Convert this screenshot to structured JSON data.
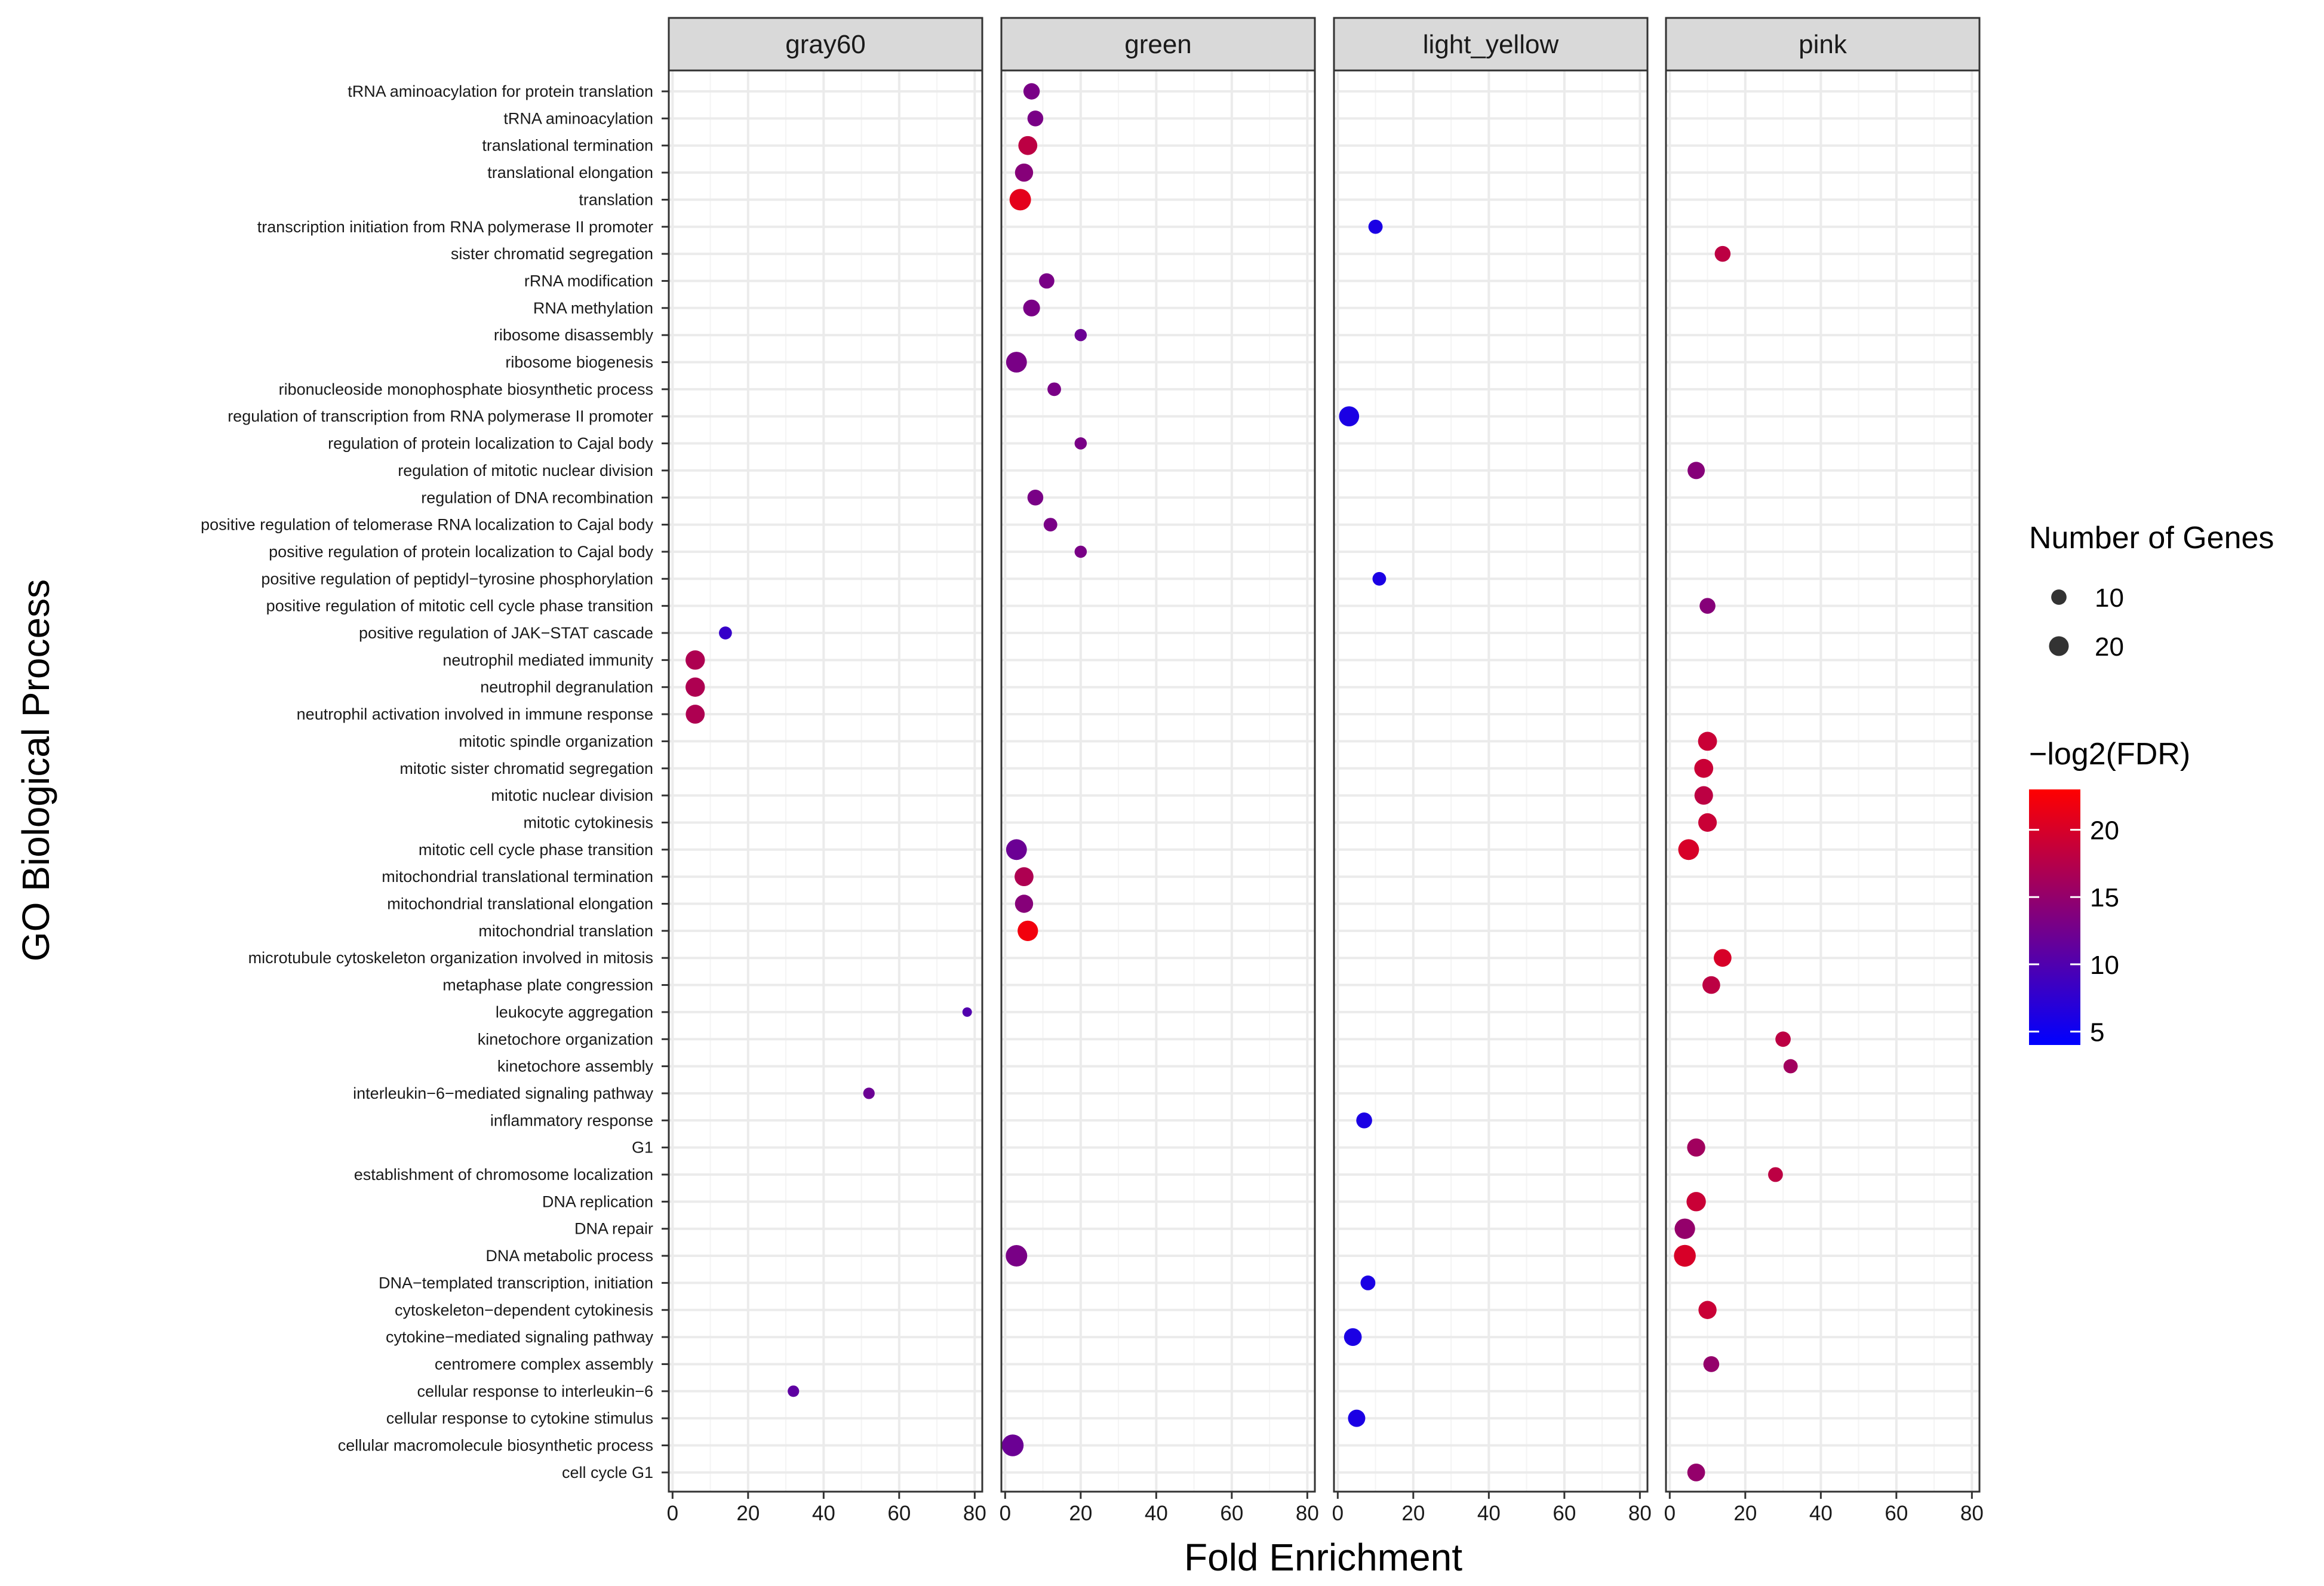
{
  "chart_data": {
    "type": "scatter",
    "facet": "column",
    "x_label": "Fold Enrichment",
    "y_label": "GO Biological Process",
    "x_ticks": [
      0,
      20,
      40,
      60,
      80
    ],
    "x_range": [
      -1,
      82
    ],
    "panels": [
      "gray60",
      "green",
      "light_yellow",
      "pink"
    ],
    "terms": [
      "tRNA aminoacylation for protein translation",
      "tRNA aminoacylation",
      "translational termination",
      "translational elongation",
      "translation",
      "transcription initiation from RNA polymerase II promoter",
      "sister chromatid segregation",
      "rRNA modification",
      "RNA methylation",
      "ribosome disassembly",
      "ribosome biogenesis",
      "ribonucleoside monophosphate biosynthetic process",
      "regulation of transcription from RNA polymerase II promoter",
      "regulation of protein localization to Cajal body",
      "regulation of mitotic nuclear division",
      "regulation of DNA recombination",
      "positive regulation of telomerase RNA localization to Cajal body",
      "positive regulation of protein localization to Cajal body",
      "positive regulation of peptidyl−tyrosine phosphorylation",
      "positive regulation of mitotic cell cycle phase transition",
      "positive regulation of JAK−STAT cascade",
      "neutrophil mediated immunity",
      "neutrophil degranulation",
      "neutrophil activation involved in immune response",
      "mitotic spindle organization",
      "mitotic sister chromatid segregation",
      "mitotic nuclear division",
      "mitotic cytokinesis",
      "mitotic cell cycle phase transition",
      "mitochondrial translational termination",
      "mitochondrial translational elongation",
      "mitochondrial translation",
      "microtubule cytoskeleton organization involved in mitosis",
      "metaphase plate congression",
      "leukocyte aggregation",
      "kinetochore organization",
      "kinetochore assembly",
      "interleukin−6−mediated signaling pathway",
      "inflammatory response",
      "G1",
      "establishment of chromosome localization",
      "DNA replication",
      "DNA repair",
      "DNA metabolic process",
      "DNA−templated transcription, initiation",
      "cytoskeleton−dependent cytokinesis",
      "cytokine−mediated signaling pathway",
      "centromere complex assembly",
      "cellular response to interleukin−6",
      "cellular response to cytokine stimulus",
      "cellular macromolecule biosynthetic process",
      "cell cycle G1"
    ],
    "points": [
      {
        "panel": "gray60",
        "term": 20,
        "x": 14,
        "genes": 6,
        "fdr": 8
      },
      {
        "panel": "gray60",
        "term": 21,
        "x": 6,
        "genes": 19,
        "fdr": 17
      },
      {
        "panel": "gray60",
        "term": 22,
        "x": 6,
        "genes": 19,
        "fdr": 17
      },
      {
        "panel": "gray60",
        "term": 23,
        "x": 6,
        "genes": 18,
        "fdr": 17
      },
      {
        "panel": "gray60",
        "term": 34,
        "x": 78,
        "genes": 2,
        "fdr": 10
      },
      {
        "panel": "gray60",
        "term": 37,
        "x": 52,
        "genes": 4,
        "fdr": 12
      },
      {
        "panel": "gray60",
        "term": 48,
        "x": 32,
        "genes": 4,
        "fdr": 11
      },
      {
        "panel": "green",
        "term": 0,
        "x": 7,
        "genes": 12,
        "fdr": 13
      },
      {
        "panel": "green",
        "term": 1,
        "x": 8,
        "genes": 11,
        "fdr": 13
      },
      {
        "panel": "green",
        "term": 2,
        "x": 6,
        "genes": 18,
        "fdr": 18
      },
      {
        "panel": "green",
        "term": 3,
        "x": 5,
        "genes": 16,
        "fdr": 14
      },
      {
        "panel": "green",
        "term": 4,
        "x": 4,
        "genes": 25,
        "fdr": 21
      },
      {
        "panel": "green",
        "term": 7,
        "x": 11,
        "genes": 10,
        "fdr": 13
      },
      {
        "panel": "green",
        "term": 8,
        "x": 7,
        "genes": 13,
        "fdr": 13
      },
      {
        "panel": "green",
        "term": 9,
        "x": 20,
        "genes": 5,
        "fdr": 12
      },
      {
        "panel": "green",
        "term": 10,
        "x": 3,
        "genes": 23,
        "fdr": 13
      },
      {
        "panel": "green",
        "term": 11,
        "x": 13,
        "genes": 7,
        "fdr": 13
      },
      {
        "panel": "green",
        "term": 13,
        "x": 20,
        "genes": 5,
        "fdr": 13
      },
      {
        "panel": "green",
        "term": 15,
        "x": 8,
        "genes": 11,
        "fdr": 13
      },
      {
        "panel": "green",
        "term": 16,
        "x": 12,
        "genes": 7,
        "fdr": 13
      },
      {
        "panel": "green",
        "term": 17,
        "x": 20,
        "genes": 5,
        "fdr": 13
      },
      {
        "panel": "green",
        "term": 28,
        "x": 3,
        "genes": 23,
        "fdr": 12
      },
      {
        "panel": "green",
        "term": 29,
        "x": 5,
        "genes": 18,
        "fdr": 17
      },
      {
        "panel": "green",
        "term": 30,
        "x": 5,
        "genes": 16,
        "fdr": 14
      },
      {
        "panel": "green",
        "term": 31,
        "x": 6,
        "genes": 22,
        "fdr": 22
      },
      {
        "panel": "green",
        "term": 43,
        "x": 3,
        "genes": 25,
        "fdr": 13
      },
      {
        "panel": "green",
        "term": 50,
        "x": 2,
        "genes": 26,
        "fdr": 12
      },
      {
        "panel": "light_yellow",
        "term": 5,
        "x": 10,
        "genes": 8,
        "fdr": 6
      },
      {
        "panel": "light_yellow",
        "term": 12,
        "x": 3,
        "genes": 21,
        "fdr": 6
      },
      {
        "panel": "light_yellow",
        "term": 18,
        "x": 11,
        "genes": 7,
        "fdr": 6
      },
      {
        "panel": "light_yellow",
        "term": 38,
        "x": 7,
        "genes": 11,
        "fdr": 6
      },
      {
        "panel": "light_yellow",
        "term": 44,
        "x": 8,
        "genes": 9,
        "fdr": 6
      },
      {
        "panel": "light_yellow",
        "term": 46,
        "x": 4,
        "genes": 15,
        "fdr": 6
      },
      {
        "panel": "light_yellow",
        "term": 49,
        "x": 5,
        "genes": 14,
        "fdr": 6
      },
      {
        "panel": "pink",
        "term": 6,
        "x": 14,
        "genes": 11,
        "fdr": 18
      },
      {
        "panel": "pink",
        "term": 14,
        "x": 7,
        "genes": 14,
        "fdr": 14
      },
      {
        "panel": "pink",
        "term": 19,
        "x": 10,
        "genes": 11,
        "fdr": 14
      },
      {
        "panel": "pink",
        "term": 24,
        "x": 10,
        "genes": 18,
        "fdr": 19
      },
      {
        "panel": "pink",
        "term": 25,
        "x": 9,
        "genes": 18,
        "fdr": 19
      },
      {
        "panel": "pink",
        "term": 26,
        "x": 9,
        "genes": 17,
        "fdr": 18
      },
      {
        "panel": "pink",
        "term": 27,
        "x": 10,
        "genes": 17,
        "fdr": 19
      },
      {
        "panel": "pink",
        "term": 28,
        "x": 5,
        "genes": 23,
        "fdr": 20
      },
      {
        "panel": "pink",
        "term": 32,
        "x": 14,
        "genes": 15,
        "fdr": 20
      },
      {
        "panel": "pink",
        "term": 33,
        "x": 11,
        "genes": 15,
        "fdr": 18
      },
      {
        "panel": "pink",
        "term": 35,
        "x": 30,
        "genes": 10,
        "fdr": 18
      },
      {
        "panel": "pink",
        "term": 36,
        "x": 32,
        "genes": 8,
        "fdr": 16
      },
      {
        "panel": "pink",
        "term": 39,
        "x": 7,
        "genes": 16,
        "fdr": 16
      },
      {
        "panel": "pink",
        "term": 40,
        "x": 28,
        "genes": 9,
        "fdr": 18
      },
      {
        "panel": "pink",
        "term": 41,
        "x": 7,
        "genes": 19,
        "fdr": 19
      },
      {
        "panel": "pink",
        "term": 42,
        "x": 4,
        "genes": 22,
        "fdr": 15
      },
      {
        "panel": "pink",
        "term": 43,
        "x": 4,
        "genes": 26,
        "fdr": 20
      },
      {
        "panel": "pink",
        "term": 45,
        "x": 10,
        "genes": 16,
        "fdr": 19
      },
      {
        "panel": "pink",
        "term": 47,
        "x": 11,
        "genes": 11,
        "fdr": 15
      },
      {
        "panel": "pink",
        "term": 51,
        "x": 7,
        "genes": 15,
        "fdr": 15
      }
    ],
    "legend_size": {
      "title": "Number of Genes",
      "breaks": [
        10,
        20
      ],
      "labels": [
        "10",
        "20"
      ]
    },
    "legend_color": {
      "title": "−log2(FDR)",
      "min": 4,
      "max": 23,
      "breaks": [
        5,
        10,
        15,
        20
      ],
      "labels": [
        "5",
        "10",
        "15",
        "20"
      ],
      "low_color": "#0000ff",
      "high_color": "#ff0000"
    },
    "colors": {
      "strip_fill": "#d9d9d9",
      "panel_border": "#333333",
      "grid_major": "#ebebeb",
      "grid_minor": "#f4f4f4"
    }
  }
}
